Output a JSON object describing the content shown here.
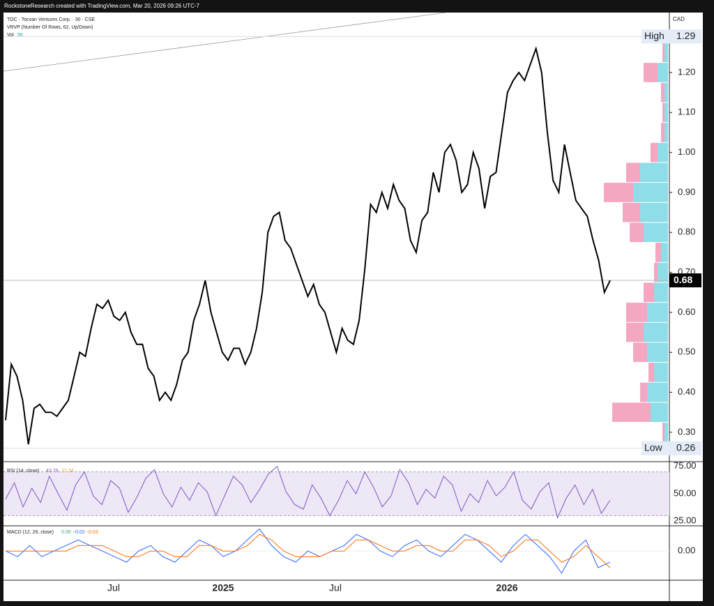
{
  "header": "RockstoneResearch created with TradingView.com, Mar 20, 2026 09:26 UTC-7",
  "legend": [
    "TOC · Tocvan Ventures Corp. · 30 · CSE",
    "VRVP (Number Of Rows, 62, Up/Down)",
    "Vol"
  ],
  "volume_label": "5K",
  "currency": "CAD",
  "chart_data": {
    "type": "line",
    "price": {
      "color": "#000000",
      "values": [
        0.33,
        0.47,
        0.44,
        0.38,
        0.27,
        0.36,
        0.37,
        0.35,
        0.35,
        0.34,
        0.36,
        0.38,
        0.44,
        0.5,
        0.49,
        0.56,
        0.62,
        0.61,
        0.63,
        0.59,
        0.58,
        0.6,
        0.55,
        0.52,
        0.52,
        0.46,
        0.44,
        0.38,
        0.4,
        0.38,
        0.42,
        0.48,
        0.5,
        0.58,
        0.62,
        0.68,
        0.6,
        0.55,
        0.5,
        0.48,
        0.51,
        0.51,
        0.47,
        0.5,
        0.56,
        0.65,
        0.8,
        0.84,
        0.85,
        0.78,
        0.76,
        0.72,
        0.68,
        0.64,
        0.67,
        0.62,
        0.6,
        0.55,
        0.5,
        0.56,
        0.53,
        0.52,
        0.58,
        0.71,
        0.87,
        0.85,
        0.9,
        0.86,
        0.92,
        0.88,
        0.86,
        0.78,
        0.75,
        0.83,
        0.85,
        0.95,
        0.9,
        1.0,
        1.02,
        0.98,
        0.9,
        0.92,
        1.0,
        0.96,
        0.86,
        0.94,
        0.95,
        1.05,
        1.15,
        1.18,
        1.2,
        1.18,
        1.22,
        1.26,
        1.2,
        1.05,
        0.93,
        0.9,
        1.02,
        0.95,
        0.88,
        0.86,
        0.84,
        0.78,
        0.73,
        0.65,
        0.68
      ]
    },
    "ylim": [
      0.23,
      1.35
    ],
    "yticks": [
      {
        "value": 0.3,
        "label": "0.30"
      },
      {
        "value": 0.4,
        "label": "0.40"
      },
      {
        "value": 0.5,
        "label": "0.50"
      },
      {
        "value": 0.6,
        "label": "0.60"
      },
      {
        "value": 0.7,
        "label": "0.70"
      },
      {
        "value": 0.8,
        "label": "0.80"
      },
      {
        "value": 0.9,
        "label": "0.90"
      },
      {
        "value": 1.0,
        "label": "1.00"
      },
      {
        "value": 1.1,
        "label": "1.10"
      },
      {
        "value": 1.2,
        "label": "1.20"
      }
    ],
    "high": {
      "label": "High",
      "value": 1.29
    },
    "low": {
      "label": "Low",
      "value": 0.26
    },
    "last": {
      "value": 0.68,
      "label": "0.68"
    },
    "x_labels": [
      "Jul",
      "2025",
      "Jul",
      "2026"
    ],
    "volume_profile": {
      "up_color": "#8fdde8",
      "down_color": "#f4a7c1",
      "prices": [
        0.3,
        0.35,
        0.4,
        0.45,
        0.5,
        0.55,
        0.6,
        0.65,
        0.7,
        0.75,
        0.8,
        0.85,
        0.9,
        0.95,
        1.0,
        1.05,
        1.1,
        1.15,
        1.2,
        1.25
      ],
      "up": [
        5,
        25,
        30,
        20,
        30,
        35,
        30,
        20,
        15,
        10,
        35,
        40,
        50,
        40,
        15,
        5,
        5,
        5,
        15,
        5
      ],
      "down": [
        3,
        55,
        10,
        8,
        20,
        25,
        30,
        15,
        5,
        8,
        20,
        25,
        42,
        20,
        10,
        5,
        3,
        5,
        20,
        3
      ]
    },
    "rsi": {
      "title": "RSI (14, close)",
      "current": 43.79,
      "current_label": "43.79",
      "ma": 37.34,
      "ma_label": "37.34",
      "color": "#7e57c2",
      "ylim": [
        22,
        78
      ],
      "yticks": [
        {
          "value": 25,
          "label": "25.00"
        },
        {
          "value": 50,
          "label": "50.00"
        },
        {
          "value": 75,
          "label": "75.00"
        }
      ],
      "band": [
        30,
        70
      ],
      "values": [
        45,
        60,
        38,
        55,
        42,
        66,
        50,
        35,
        58,
        70,
        48,
        40,
        62,
        55,
        33,
        47,
        64,
        72,
        50,
        38,
        56,
        44,
        60,
        52,
        30,
        48,
        66,
        58,
        42,
        54,
        68,
        75,
        52,
        40,
        36,
        58,
        46,
        30,
        44,
        62,
        50,
        70,
        56,
        38,
        48,
        72,
        60,
        40,
        54,
        46,
        66,
        58,
        34,
        50,
        42,
        62,
        48,
        56,
        70,
        44,
        36,
        52,
        60,
        28,
        46,
        58,
        40,
        54,
        32,
        44
      ]
    },
    "macd": {
      "title": "MACD (12, 26, close)",
      "hist_label": "0.00",
      "macd_label": "−0.02",
      "signal_label": "−0.03",
      "macd_color": "#2962ff",
      "signal_color": "#ff6d00",
      "ylim": [
        -0.05,
        0.043
      ],
      "yticks": [
        {
          "value": 0,
          "label": "0.00"
        }
      ],
      "macd": [
        0.0,
        -0.01,
        0.01,
        -0.01,
        0.0,
        0.01,
        0.02,
        0.01,
        0.0,
        -0.01,
        -0.02,
        0.0,
        0.01,
        -0.01,
        -0.02,
        0.0,
        0.02,
        0.01,
        -0.01,
        0.0,
        0.02,
        0.04,
        0.01,
        -0.01,
        -0.02,
        0.0,
        -0.01,
        0.0,
        0.01,
        0.03,
        0.02,
        0.0,
        -0.01,
        0.01,
        0.02,
        0.0,
        -0.01,
        0.01,
        0.03,
        0.02,
        0.0,
        -0.02,
        0.01,
        0.03,
        0.01,
        -0.01,
        -0.04,
        0.0,
        0.02,
        -0.03,
        -0.02
      ],
      "signal": [
        0.0,
        0.0,
        0.0,
        0.0,
        0.0,
        0.0,
        0.01,
        0.01,
        0.01,
        0.0,
        -0.01,
        -0.01,
        0.0,
        0.0,
        -0.01,
        -0.01,
        0.01,
        0.01,
        0.0,
        0.0,
        0.01,
        0.03,
        0.02,
        0.0,
        -0.01,
        -0.01,
        -0.01,
        0.0,
        0.0,
        0.02,
        0.02,
        0.01,
        0.0,
        0.0,
        0.01,
        0.01,
        0.0,
        0.0,
        0.02,
        0.02,
        0.01,
        -0.01,
        0.0,
        0.02,
        0.02,
        0.0,
        -0.02,
        -0.01,
        0.01,
        -0.01,
        -0.03
      ]
    }
  }
}
